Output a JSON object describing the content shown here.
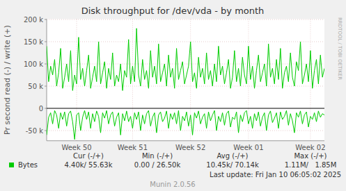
{
  "chart_data": {
    "type": "line",
    "title": "Disk throughput for /dev/vda - by month",
    "y_label": "Pr second read (-) / write (+)",
    "credit": "RRDTOOL / TOBI OETIKER",
    "categories": [
      null,
      null,
      null,
      null,
      null,
      null,
      null,
      null,
      null,
      null,
      null,
      null,
      null,
      null,
      null,
      "Week 50",
      null,
      null,
      null,
      null,
      null,
      null,
      null,
      null,
      null,
      null,
      null,
      null,
      null,
      null,
      null,
      null,
      null,
      null,
      null,
      null,
      null,
      null,
      null,
      null,
      null,
      null,
      null,
      "Week 51",
      null,
      null,
      null,
      null,
      null,
      null,
      null,
      null,
      null,
      null,
      null,
      null,
      null,
      null,
      null,
      null,
      null,
      null,
      null,
      null,
      null,
      null,
      null,
      null,
      null,
      null,
      null,
      null,
      "Week 52",
      null,
      null,
      null,
      null,
      null,
      null,
      null,
      null,
      null,
      null,
      null,
      null,
      null,
      null,
      null,
      null,
      null,
      null,
      null,
      null,
      null,
      null,
      null,
      null,
      null,
      null,
      null,
      null,
      "Week 01",
      null,
      null,
      null,
      null,
      null,
      null,
      null,
      null,
      null,
      null,
      null,
      null,
      null,
      null,
      null,
      null,
      null,
      null,
      null,
      null,
      null,
      null,
      null,
      null,
      null,
      null,
      null,
      null,
      null,
      null,
      "Week 02",
      null,
      null,
      null,
      null,
      null,
      null,
      null
    ],
    "series": [
      {
        "name": "Bytes",
        "color": "#00cc00",
        "values": [
          140000,
          60000,
          95000,
          75000,
          110000,
          50000,
          80000,
          135000,
          45000,
          70000,
          100000,
          60000,
          130000,
          40000,
          75000,
          55000,
          160000,
          65000,
          90000,
          50000,
          85000,
          120000,
          45000,
          70000,
          95000,
          60000,
          150000,
          55000,
          80000,
          105000,
          45000,
          90000,
          65000,
          125000,
          50000,
          75000,
          60000,
          100000,
          40000,
          85000,
          70000,
          155000,
          55000,
          95000,
          60000,
          180000,
          75000,
          50000,
          110000,
          65000,
          85000,
          45000,
          130000,
          70000,
          95000,
          55000,
          145000,
          60000,
          80000,
          100000,
          50000,
          120000,
          70000,
          90000,
          45000,
          135000,
          65000,
          85000,
          105000,
          55000,
          75000,
          95000,
          150000,
          60000,
          80000,
          45000,
          115000,
          70000,
          90000,
          55000,
          125000,
          65000,
          85000,
          50000,
          100000,
          60000,
          140000,
          75000,
          95000,
          55000,
          80000,
          110000,
          45000,
          70000,
          130000,
          60000,
          90000,
          50000,
          115000,
          75000,
          55000,
          140000,
          65000,
          95000,
          45000,
          85000,
          120000,
          60000,
          80000,
          100000,
          50000,
          145000,
          70000,
          90000,
          55000,
          110000,
          65000,
          135000,
          45000,
          80000,
          95000,
          60000,
          125000,
          70000,
          50000,
          105000,
          85000,
          150000,
          55000,
          75000,
          100000,
          60000,
          130000,
          45000,
          85000,
          110000,
          55000,
          120000,
          70000,
          90000
        ]
      },
      {
        "color": "#00cc00",
        "values": [
          -60000,
          -20000,
          -10000,
          -35000,
          -5000,
          -15000,
          -45000,
          -10000,
          -25000,
          -8000,
          -40000,
          -12000,
          -6000,
          -30000,
          -70000,
          -15000,
          -10000,
          -50000,
          -20000,
          -5000,
          -25000,
          -8000,
          -45000,
          -12000,
          -30000,
          -6000,
          -18000,
          -55000,
          -10000,
          -22000,
          -5000,
          -35000,
          -15000,
          -8000,
          -40000,
          -20000,
          -10000,
          -60000,
          -12000,
          -28000,
          -6000,
          -30000,
          -18000,
          -45000,
          -10000,
          -25000,
          -8000,
          -50000,
          -15000,
          -35000,
          -12000,
          -5000,
          -40000,
          -20000,
          -10000,
          -55000,
          -15000,
          -8000,
          -30000,
          -22000,
          -6000,
          -45000,
          -12000,
          -25000,
          -10000,
          -35000,
          -5000,
          -50000,
          -18000,
          -28000,
          -8000,
          -40000,
          -15000,
          -60000,
          -10000,
          -22000,
          -6000,
          -35000,
          -20000,
          -12000,
          -45000,
          -8000,
          -28000,
          -15000,
          -5000,
          -50000,
          -18000,
          -30000,
          -10000,
          -38000,
          -12000,
          -6000,
          -42000,
          -20000,
          -25000,
          -8000,
          -55000,
          -15000,
          -30000,
          -10000,
          -5000,
          -35000,
          -18000,
          -45000,
          -12000,
          -28000,
          -8000,
          -40000,
          -20000,
          -10000,
          -50000,
          -15000,
          -6000,
          -32000,
          -22000,
          -10000,
          -45000,
          -8000,
          -25000,
          -18000,
          -5000,
          -38000,
          -12000,
          -28000,
          -55000,
          -10000,
          -20000,
          -6000,
          -35000,
          -15000,
          -8000,
          -42000,
          -18000,
          -25000,
          -10000,
          -30000,
          -6000,
          -20000,
          -12000,
          -15000
        ]
      }
    ],
    "ylim": [
      -73000,
      201000
    ],
    "yticks": [
      {
        "value": -50000,
        "label": "-50 k"
      },
      0,
      {
        "value": 50000,
        "label": "50 k"
      },
      {
        "value": 100000,
        "label": "100 k"
      },
      {
        "value": 150000,
        "label": "150 k"
      },
      {
        "value": 200000,
        "label": "200 k"
      }
    ],
    "grid": true,
    "summary": {
      "headers": [
        "Cur (-/+)",
        "Min (-/+)",
        "Avg (-/+)",
        "Max (-/+)"
      ],
      "values": [
        "4.40k/ 55.63k",
        "0.00 / 26.50k",
        "10.45k/ 70.14k",
        "1.11M/   1.85M"
      ]
    },
    "footer": [
      "Last update: Fri Jan 10 06:05:02 2025",
      "Munin 2.0.56"
    ]
  }
}
